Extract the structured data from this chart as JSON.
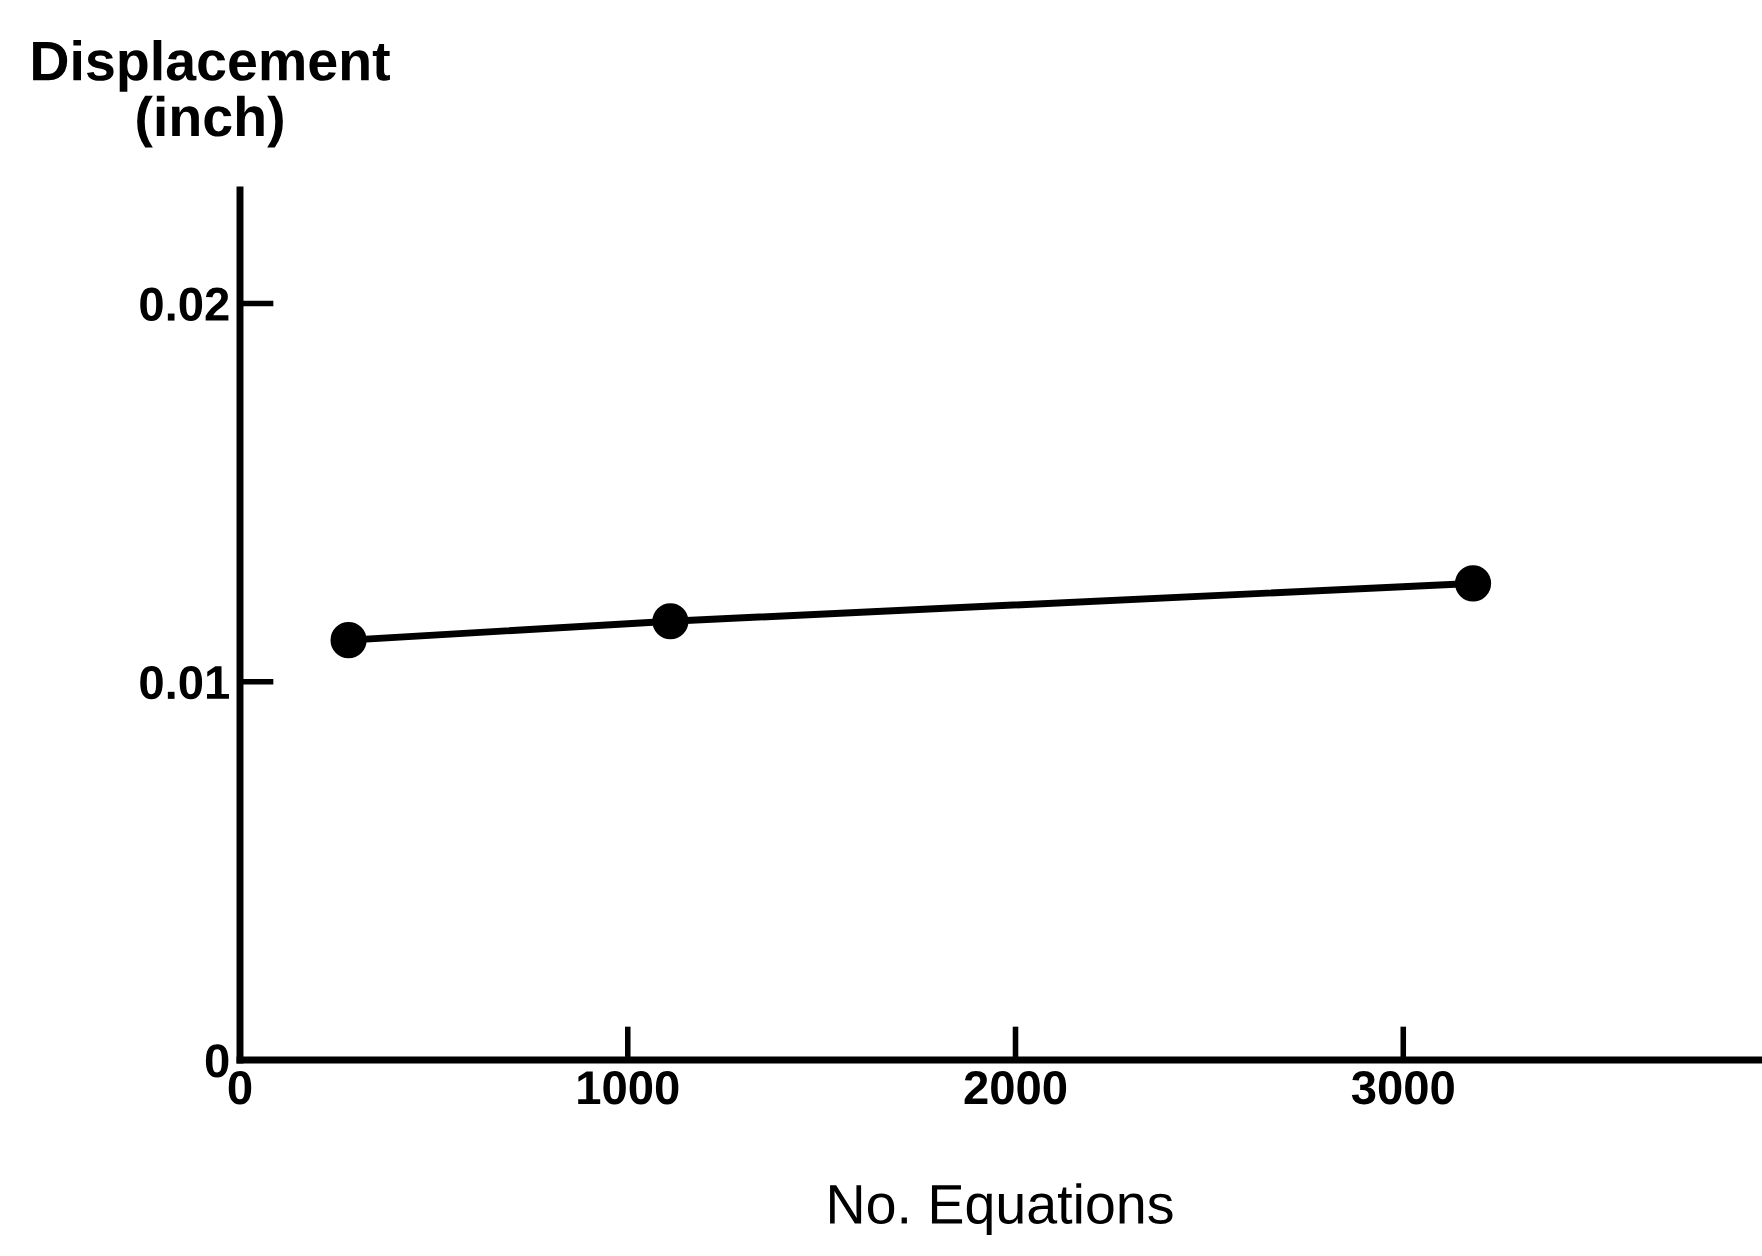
{
  "chart_data": {
    "type": "line",
    "xlabel": "No. Equations",
    "ylabel": "Displacement\n(inch)",
    "x": [
      280,
      1110,
      3180
    ],
    "series": [
      {
        "color": "#000000",
        "values": [
          0.0111,
          0.0116,
          0.0126
        ]
      }
    ],
    "marker": "circle",
    "line_style": "solid",
    "xlim": [
      0,
      3920
    ],
    "xticks": [
      0,
      1000,
      2000,
      3000
    ],
    "ylim": [
      0,
      0.023
    ],
    "yticks": [
      {
        "value": 0,
        "label": "0"
      },
      {
        "value": 0.01,
        "label": "0.01"
      },
      {
        "value": 0.02,
        "label": "0.02"
      }
    ],
    "grid": false,
    "legend": false
  }
}
